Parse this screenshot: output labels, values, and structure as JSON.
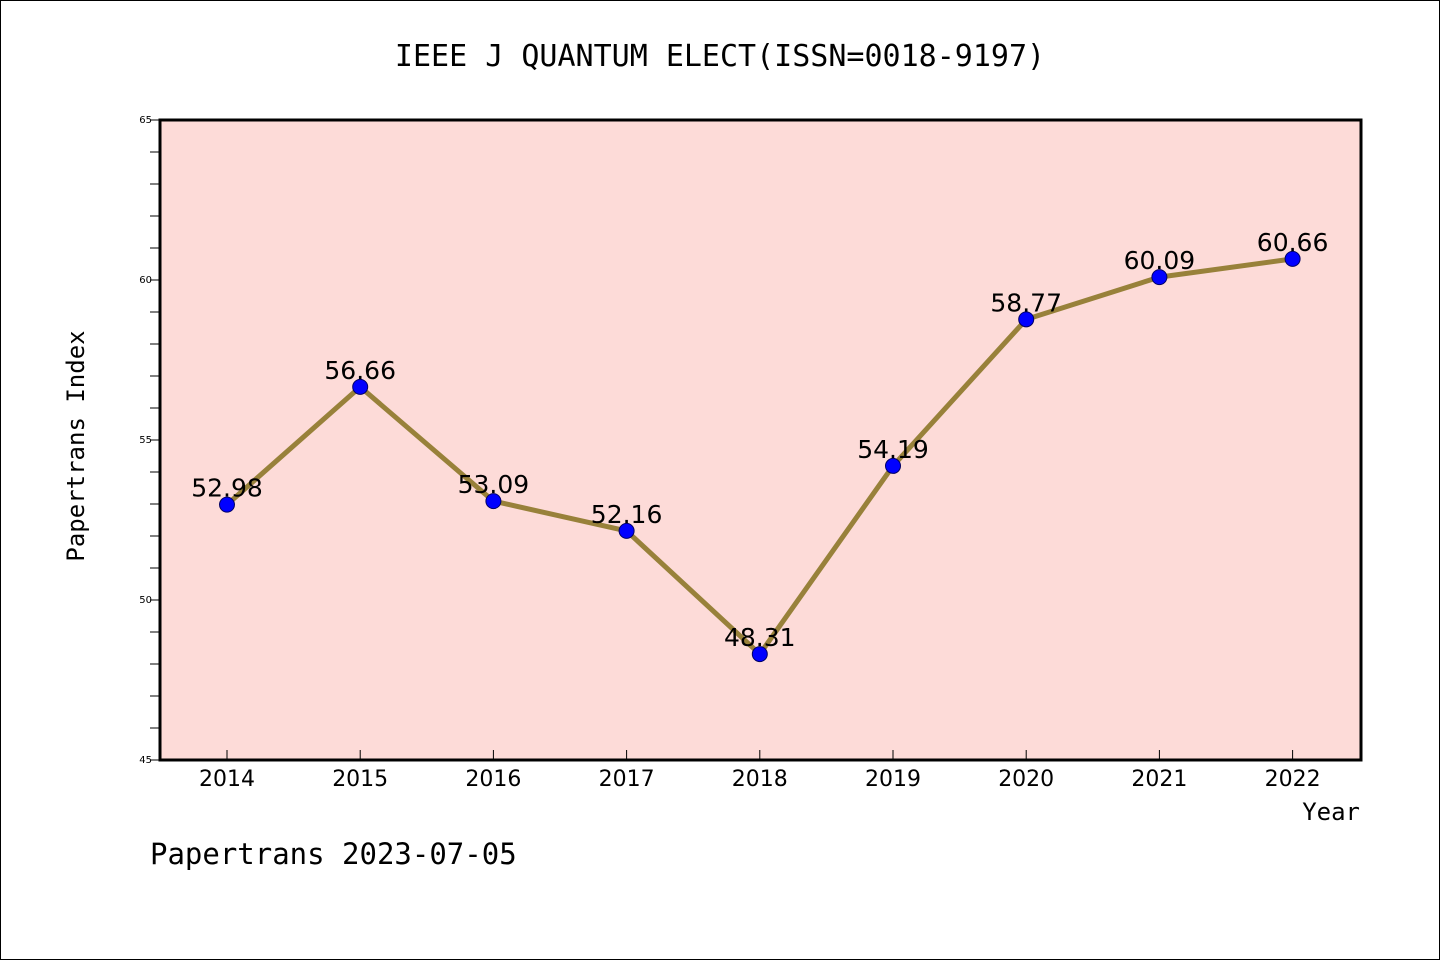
{
  "chart_data": {
    "type": "line",
    "title": "IEEE J QUANTUM ELECT(ISSN=0018-9197)",
    "xlabel": "Year",
    "ylabel": "Papertrans Index",
    "categories": [
      "2014",
      "2015",
      "2016",
      "2017",
      "2018",
      "2019",
      "2020",
      "2021",
      "2022"
    ],
    "series": [
      {
        "values": [
          52.98,
          56.66,
          53.09,
          52.16,
          48.31,
          54.19,
          58.77,
          60.09,
          60.66
        ]
      }
    ],
    "data_labels": [
      "52.98",
      "56.66",
      "53.09",
      "52.16",
      "48.31",
      "54.19",
      "58.77",
      "60.09",
      "60.66"
    ],
    "ylim": [
      45,
      65
    ],
    "yticks": [
      "45",
      "50",
      "55",
      "60",
      "65"
    ],
    "grid": false,
    "colors": {
      "plot_background": "#fddbd8",
      "line": "#98813a",
      "marker": "#0000ff"
    }
  },
  "footer": "Papertrans 2023-07-05"
}
